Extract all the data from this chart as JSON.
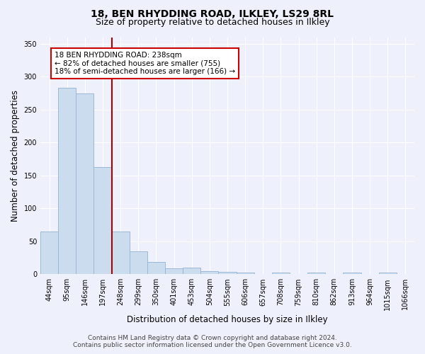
{
  "title1": "18, BEN RHYDDING ROAD, ILKLEY, LS29 8RL",
  "title2": "Size of property relative to detached houses in Ilkley",
  "xlabel": "Distribution of detached houses by size in Ilkley",
  "ylabel": "Number of detached properties",
  "categories": [
    "44sqm",
    "95sqm",
    "146sqm",
    "197sqm",
    "248sqm",
    "299sqm",
    "350sqm",
    "401sqm",
    "453sqm",
    "504sqm",
    "555sqm",
    "606sqm",
    "657sqm",
    "708sqm",
    "759sqm",
    "810sqm",
    "862sqm",
    "913sqm",
    "964sqm",
    "1015sqm",
    "1066sqm"
  ],
  "values": [
    65,
    283,
    275,
    163,
    65,
    35,
    19,
    9,
    10,
    5,
    4,
    2,
    0,
    2,
    0,
    2,
    0,
    2,
    0,
    2,
    0
  ],
  "bar_color": "#ccdcef",
  "bar_edge_color": "#9ab8d8",
  "vline_color": "#aa0000",
  "vline_position": 3.5,
  "annotation_text": "18 BEN RHYDDING ROAD: 238sqm\n← 82% of detached houses are smaller (755)\n18% of semi-detached houses are larger (166) →",
  "annotation_box_facecolor": "white",
  "annotation_box_edgecolor": "#cc0000",
  "ylim": [
    0,
    360
  ],
  "yticks": [
    0,
    50,
    100,
    150,
    200,
    250,
    300,
    350
  ],
  "footer_line1": "Contains HM Land Registry data © Crown copyright and database right 2024.",
  "footer_line2": "Contains public sector information licensed under the Open Government Licence v3.0.",
  "background_color": "#eef1fb",
  "grid_color": "#ffffff",
  "title1_fontsize": 10,
  "title2_fontsize": 9,
  "axis_label_fontsize": 8.5,
  "tick_fontsize": 7,
  "annotation_fontsize": 7.5,
  "footer_fontsize": 6.5
}
